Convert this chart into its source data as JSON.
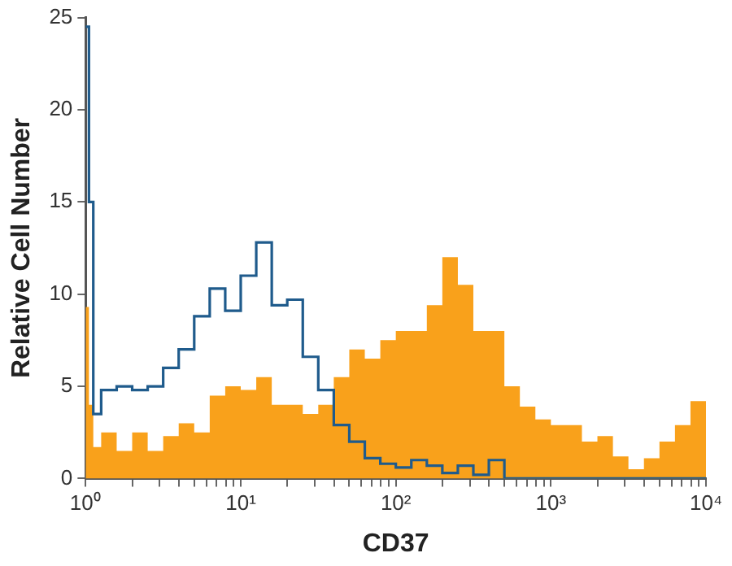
{
  "chart_data": {
    "type": "histogram",
    "xlabel": "CD37",
    "ylabel": "Relative Cell Number",
    "bins": [
      1,
      1.05,
      1.12,
      1.259,
      1.585,
      1.995,
      2.512,
      3.162,
      3.981,
      5.012,
      6.31,
      7.943,
      10,
      12.59,
      15.85,
      19.95,
      25.12,
      31.62,
      39.81,
      50.12,
      63.1,
      79.43,
      100,
      125.9,
      158.5,
      199.5,
      251.2,
      316.2,
      398.1,
      501.2,
      631,
      794.3,
      1000,
      1259,
      1585,
      1995,
      2512,
      3162,
      3981,
      5012,
      6310,
      7943,
      10000
    ],
    "series": [
      {
        "color": "#f9a11b",
        "values": [
          9.3,
          4,
          1.7,
          2.5,
          1.5,
          2.5,
          1.5,
          2.3,
          3,
          2.5,
          4.5,
          5,
          4.8,
          5.5,
          4,
          4,
          3.5,
          4,
          5.5,
          7,
          6.5,
          7.5,
          8,
          8,
          9.4,
          12,
          10.5,
          8,
          8,
          5,
          3.9,
          3.2,
          2.9,
          2.9,
          2,
          2.3,
          1.2,
          0.5,
          1.1,
          2,
          2.9,
          4.2
        ]
      },
      {
        "type": "step",
        "color": "#1f5b8c",
        "x": [
          1,
          1.05,
          1.12,
          1.259,
          1.585,
          1.995,
          2.512,
          3.162,
          3.981,
          5.012,
          6.31,
          7.943,
          10,
          12.59,
          15.85,
          19.95,
          25.12,
          31.62,
          39.81,
          50.12,
          63.1,
          79.43,
          100,
          125.9,
          158.5,
          199.5,
          251.2,
          316.2,
          398.1,
          501.2,
          631,
          794.3,
          1000,
          1259,
          1585,
          1995,
          2512,
          3162,
          3981,
          5012,
          6310,
          7943,
          10000
        ],
        "values": [
          24.5,
          15,
          3.5,
          4.8,
          5,
          4.8,
          5,
          6,
          7,
          8.8,
          10.3,
          9.1,
          11,
          12.8,
          9.4,
          9.7,
          6.6,
          4.8,
          2.9,
          2,
          1.1,
          0.8,
          0.6,
          1,
          0.7,
          0.3,
          0.7,
          0.2,
          1,
          0,
          0,
          0,
          0,
          0,
          0,
          0,
          0,
          0,
          0,
          0,
          0,
          0,
          0
        ]
      }
    ],
    "log": "x",
    "xlim": [
      1,
      10000
    ],
    "xticks": [
      {
        "value": 1,
        "label": "10⁰"
      },
      {
        "value": 2,
        "label": null
      },
      {
        "value": 3,
        "label": null
      },
      {
        "value": 4,
        "label": null
      },
      {
        "value": 5,
        "label": null
      },
      {
        "value": 6,
        "label": null
      },
      {
        "value": 7,
        "label": null
      },
      {
        "value": 8,
        "label": null
      },
      {
        "value": 9,
        "label": null
      },
      {
        "value": 10,
        "label": "10¹"
      },
      {
        "value": 20,
        "label": null
      },
      {
        "value": 30,
        "label": null
      },
      {
        "value": 40,
        "label": null
      },
      {
        "value": 50,
        "label": null
      },
      {
        "value": 60,
        "label": null
      },
      {
        "value": 70,
        "label": null
      },
      {
        "value": 80,
        "label": null
      },
      {
        "value": 90,
        "label": null
      },
      {
        "value": 100,
        "label": "10²"
      },
      {
        "value": 200,
        "label": null
      },
      {
        "value": 300,
        "label": null
      },
      {
        "value": 400,
        "label": null
      },
      {
        "value": 500,
        "label": null
      },
      {
        "value": 600,
        "label": null
      },
      {
        "value": 700,
        "label": null
      },
      {
        "value": 800,
        "label": null
      },
      {
        "value": 900,
        "label": null
      },
      {
        "value": 1000,
        "label": "10³"
      },
      {
        "value": 2000,
        "label": null
      },
      {
        "value": 3000,
        "label": null
      },
      {
        "value": 4000,
        "label": null
      },
      {
        "value": 5000,
        "label": null
      },
      {
        "value": 6000,
        "label": null
      },
      {
        "value": 7000,
        "label": null
      },
      {
        "value": 8000,
        "label": null
      },
      {
        "value": 9000,
        "label": null
      },
      {
        "value": 10000,
        "label": "10⁴"
      }
    ],
    "ylim": [
      0,
      25
    ],
    "yticks": [
      0,
      5,
      10,
      15,
      20,
      25
    ],
    "grid": false,
    "legend": false
  }
}
